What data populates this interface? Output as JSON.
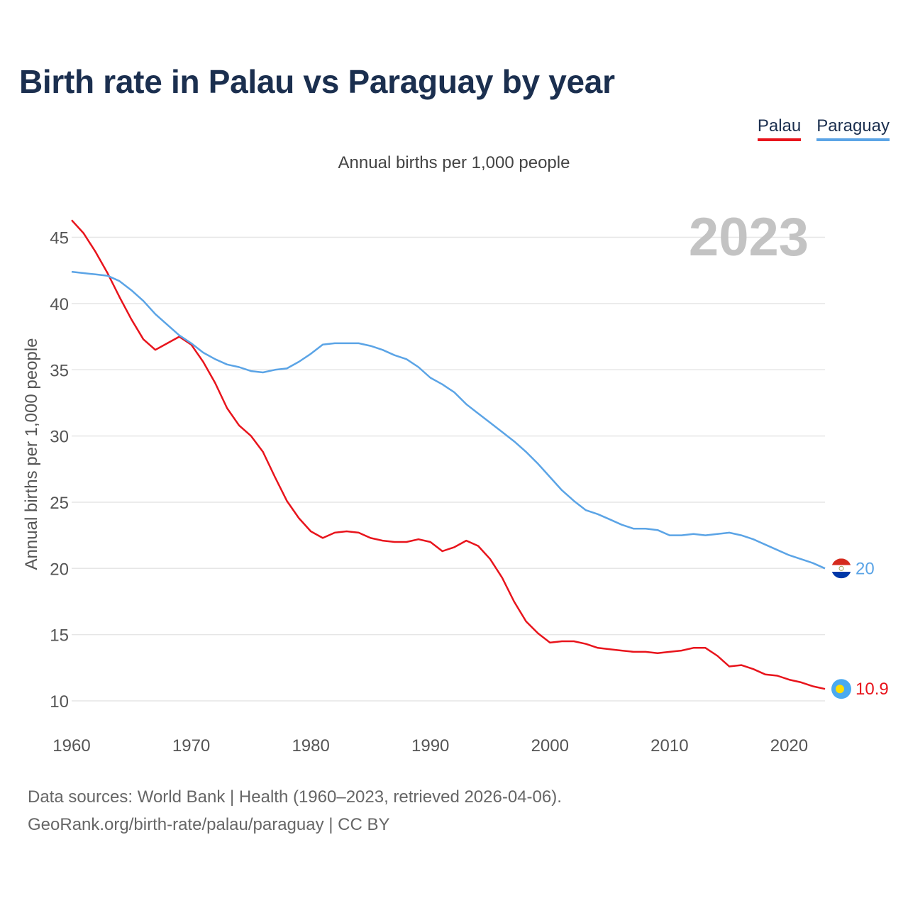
{
  "title": "Birth rate in Palau vs Paraguay by year",
  "subtitle": "Annual births per 1,000 people",
  "legend": [
    {
      "name": "Palau",
      "color": "#e8141c"
    },
    {
      "name": "Paraguay",
      "color": "#5ba4e6"
    }
  ],
  "year_badge": "2023",
  "source_line1": "Data sources: World Bank | Health (1960–2023, retrieved 2026-04-06).",
  "source_line2": "GeoRank.org/birth-rate/palau/paraguay | CC BY",
  "chart_data": {
    "type": "line",
    "title": "Birth rate in Palau vs Paraguay by year",
    "xlabel": "",
    "ylabel": "Annual births per 1,000 people",
    "xlim": [
      1960,
      2023
    ],
    "ylim": [
      10,
      47
    ],
    "yticks": [
      10,
      15,
      20,
      25,
      30,
      35,
      40,
      45
    ],
    "xticks": [
      1960,
      1970,
      1980,
      1990,
      2000,
      2010,
      2020
    ],
    "grid": true,
    "legend_position": "top-right",
    "x_start": 1960,
    "series": [
      {
        "name": "Palau",
        "color": "#e8141c",
        "end_label": "10.9",
        "icon": "palau-flag-icon",
        "values": [
          46.3,
          45.3,
          43.9,
          42.3,
          40.5,
          38.8,
          37.3,
          36.5,
          37.0,
          37.5,
          36.9,
          35.6,
          34.0,
          32.1,
          30.8,
          30.0,
          28.8,
          26.9,
          25.1,
          23.8,
          22.8,
          22.3,
          22.7,
          22.8,
          22.7,
          22.3,
          22.1,
          22.0,
          22.0,
          22.2,
          22.0,
          21.3,
          21.6,
          22.1,
          21.7,
          20.7,
          19.3,
          17.5,
          16.0,
          15.1,
          14.4,
          14.5,
          14.5,
          14.3,
          14.0,
          13.9,
          13.8,
          13.7,
          13.7,
          13.6,
          13.7,
          13.8,
          14.0,
          14.0,
          13.4,
          12.6,
          12.7,
          12.4,
          12.0,
          11.9,
          11.6,
          11.4,
          11.1,
          10.9
        ]
      },
      {
        "name": "Paraguay",
        "color": "#5ba4e6",
        "end_label": "20",
        "icon": "paraguay-flag-icon",
        "values": [
          42.4,
          42.3,
          42.2,
          42.1,
          41.7,
          41.0,
          40.2,
          39.2,
          38.4,
          37.6,
          37.0,
          36.3,
          35.8,
          35.4,
          35.2,
          34.9,
          34.8,
          35.0,
          35.1,
          35.6,
          36.2,
          36.9,
          37.0,
          37.0,
          37.0,
          36.8,
          36.5,
          36.1,
          35.8,
          35.2,
          34.4,
          33.9,
          33.3,
          32.4,
          31.7,
          31.0,
          30.3,
          29.6,
          28.8,
          27.9,
          26.9,
          25.9,
          25.1,
          24.4,
          24.1,
          23.7,
          23.3,
          23.0,
          23.0,
          22.9,
          22.5,
          22.5,
          22.6,
          22.5,
          22.6,
          22.7,
          22.5,
          22.2,
          21.8,
          21.4,
          21.0,
          20.7,
          20.4,
          20.0
        ]
      }
    ]
  }
}
